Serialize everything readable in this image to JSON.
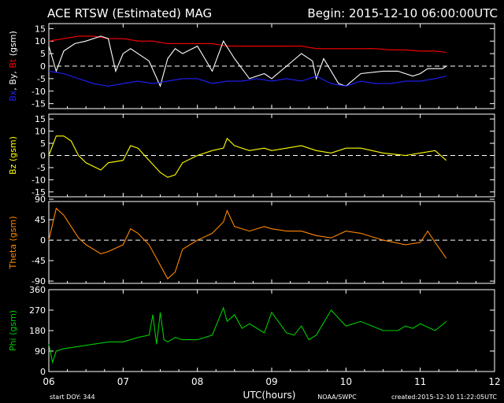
{
  "header": {
    "title": "ACE RTSW (Estimated) MAG",
    "begin": "Begin: 2015-12-10 06:00:00UTC"
  },
  "footer": {
    "start_doy": "start DOY:  344",
    "xlabel": "UTC(hours)",
    "credit": "NOAA/SWPC",
    "created": "created:2015-12-10 11:22:05UTC"
  },
  "colors": {
    "background": "#000000",
    "frame": "#ffffff",
    "bt": "#ff0000",
    "bx": "#00ff00",
    "by": "#ffffff",
    "bz_series": "#2020ff",
    "bz_panel": "#ffff00",
    "theta": "#ff8800",
    "phi": "#00cc00"
  },
  "chart_data": [
    {
      "type": "line",
      "ylabel": "Bx, By, Bt (gsm)",
      "ylim": [
        -17,
        17
      ],
      "yticks": [
        -15,
        -10,
        -5,
        0,
        5,
        10,
        15
      ],
      "xlim": [
        6,
        12
      ],
      "zero_line": true,
      "series": [
        {
          "name": "Bt",
          "color": "#ff0000",
          "x": [
            6.0,
            6.2,
            6.4,
            6.6,
            6.8,
            7.0,
            7.2,
            7.4,
            7.6,
            7.8,
            8.0,
            8.2,
            8.4,
            8.6,
            8.8,
            9.0,
            9.2,
            9.4,
            9.6,
            9.8,
            10.0,
            10.2,
            10.4,
            10.6,
            10.8,
            11.0,
            11.2,
            11.35
          ],
          "y": [
            10,
            11,
            12,
            12,
            11,
            11,
            10,
            10,
            9,
            9,
            9,
            9,
            8,
            8,
            8,
            8,
            8,
            8,
            7,
            7,
            7,
            7,
            7,
            6.5,
            6.5,
            6,
            6,
            5.5
          ]
        },
        {
          "name": "By",
          "color": "#ffffff",
          "x": [
            6.0,
            6.1,
            6.2,
            6.35,
            6.5,
            6.7,
            6.8,
            6.9,
            7.0,
            7.1,
            7.2,
            7.35,
            7.5,
            7.6,
            7.7,
            7.8,
            8.0,
            8.2,
            8.35,
            8.5,
            8.7,
            8.9,
            9.0,
            9.2,
            9.4,
            9.55,
            9.6,
            9.7,
            9.9,
            10.0,
            10.2,
            10.5,
            10.7,
            10.9,
            11.0,
            11.1,
            11.3,
            11.35
          ],
          "y": [
            8,
            -2,
            6,
            9,
            10,
            12,
            11,
            -2,
            5,
            7,
            5,
            2,
            -8,
            3,
            7,
            5,
            8,
            -2,
            10,
            3,
            -5,
            -3,
            -5,
            0,
            5,
            2,
            -5,
            3,
            -7,
            -8,
            -3,
            -2,
            -2,
            -4,
            -3,
            -1,
            -1,
            0
          ]
        },
        {
          "name": "Bx",
          "color": "#2020ff",
          "x": [
            6.0,
            6.2,
            6.4,
            6.6,
            6.8,
            7.0,
            7.2,
            7.4,
            7.6,
            7.8,
            8.0,
            8.2,
            8.4,
            8.6,
            8.8,
            9.0,
            9.2,
            9.4,
            9.6,
            9.8,
            10.0,
            10.2,
            10.4,
            10.6,
            10.8,
            11.0,
            11.2,
            11.35
          ],
          "y": [
            -2,
            -3,
            -5,
            -7,
            -8,
            -7,
            -6,
            -7,
            -6,
            -5,
            -5,
            -7,
            -6,
            -6,
            -5,
            -6,
            -5,
            -6,
            -4,
            -7,
            -8,
            -6,
            -7,
            -7,
            -6,
            -6,
            -5,
            -4
          ]
        }
      ]
    },
    {
      "type": "line",
      "ylabel": "Bz (gsm)",
      "ylim": [
        -17,
        17
      ],
      "yticks": [
        -15,
        -10,
        -5,
        0,
        5,
        10,
        15
      ],
      "xlim": [
        6,
        12
      ],
      "zero_line": true,
      "series": [
        {
          "name": "Bz",
          "color": "#ffff00",
          "x": [
            6.0,
            6.1,
            6.2,
            6.3,
            6.4,
            6.5,
            6.7,
            6.8,
            7.0,
            7.1,
            7.2,
            7.35,
            7.5,
            7.6,
            7.7,
            7.8,
            8.0,
            8.2,
            8.35,
            8.4,
            8.5,
            8.7,
            8.9,
            9.0,
            9.2,
            9.4,
            9.6,
            9.8,
            10.0,
            10.2,
            10.5,
            10.8,
            11.0,
            11.2,
            11.35
          ],
          "y": [
            0,
            8,
            8,
            6,
            0,
            -3,
            -6,
            -3,
            -2,
            4,
            3,
            -2,
            -7,
            -9,
            -8,
            -3,
            0,
            2,
            3,
            7,
            4,
            2,
            3,
            2,
            3,
            4,
            2,
            1,
            3,
            3,
            1,
            0,
            1,
            2,
            -2
          ]
        }
      ]
    },
    {
      "type": "line",
      "ylabel": "Theta (gsm)",
      "ylim": [
        -95,
        85
      ],
      "yticks": [
        -90,
        -45,
        0,
        45,
        90
      ],
      "ytick_labels": [
        "-90",
        "-45",
        "0",
        "45",
        "90"
      ],
      "xlim": [
        6,
        12
      ],
      "zero_line": true,
      "series": [
        {
          "name": "Theta",
          "color": "#ff8800",
          "x": [
            6.0,
            6.1,
            6.2,
            6.3,
            6.4,
            6.5,
            6.7,
            6.8,
            7.0,
            7.1,
            7.2,
            7.35,
            7.5,
            7.6,
            7.7,
            7.8,
            8.0,
            8.2,
            8.35,
            8.4,
            8.5,
            8.7,
            8.9,
            9.0,
            9.2,
            9.4,
            9.6,
            9.8,
            10.0,
            10.2,
            10.5,
            10.8,
            11.0,
            11.1,
            11.2,
            11.35
          ],
          "y": [
            0,
            70,
            55,
            30,
            5,
            -10,
            -30,
            -25,
            -10,
            25,
            15,
            -10,
            -55,
            -85,
            -70,
            -20,
            0,
            15,
            40,
            65,
            30,
            20,
            30,
            25,
            20,
            20,
            10,
            5,
            20,
            15,
            0,
            -10,
            -5,
            20,
            -5,
            -40
          ]
        }
      ]
    },
    {
      "type": "line",
      "ylabel": "Phi (gsm)",
      "ylim": [
        0,
        360
      ],
      "yticks": [
        0,
        90,
        180,
        270,
        360
      ],
      "xlim": [
        6,
        12
      ],
      "xticks": [
        6,
        7,
        8,
        9,
        10,
        11,
        12
      ],
      "xtick_labels": [
        "06",
        "07",
        "08",
        "09",
        "10",
        "11",
        "12"
      ],
      "zero_line": false,
      "series": [
        {
          "name": "Phi",
          "color": "#00cc00",
          "x": [
            6.0,
            6.05,
            6.1,
            6.2,
            6.4,
            6.6,
            6.8,
            7.0,
            7.2,
            7.35,
            7.4,
            7.45,
            7.5,
            7.55,
            7.6,
            7.7,
            7.8,
            8.0,
            8.2,
            8.35,
            8.4,
            8.5,
            8.6,
            8.7,
            8.9,
            9.0,
            9.2,
            9.3,
            9.4,
            9.5,
            9.6,
            9.8,
            10.0,
            10.2,
            10.5,
            10.7,
            10.8,
            10.9,
            11.0,
            11.2,
            11.35
          ],
          "y": [
            120,
            40,
            90,
            100,
            110,
            120,
            130,
            130,
            150,
            160,
            250,
            120,
            260,
            140,
            130,
            150,
            140,
            140,
            160,
            280,
            220,
            250,
            190,
            210,
            170,
            260,
            170,
            160,
            200,
            140,
            160,
            270,
            200,
            220,
            180,
            180,
            200,
            190,
            210,
            180,
            220
          ]
        }
      ]
    }
  ]
}
